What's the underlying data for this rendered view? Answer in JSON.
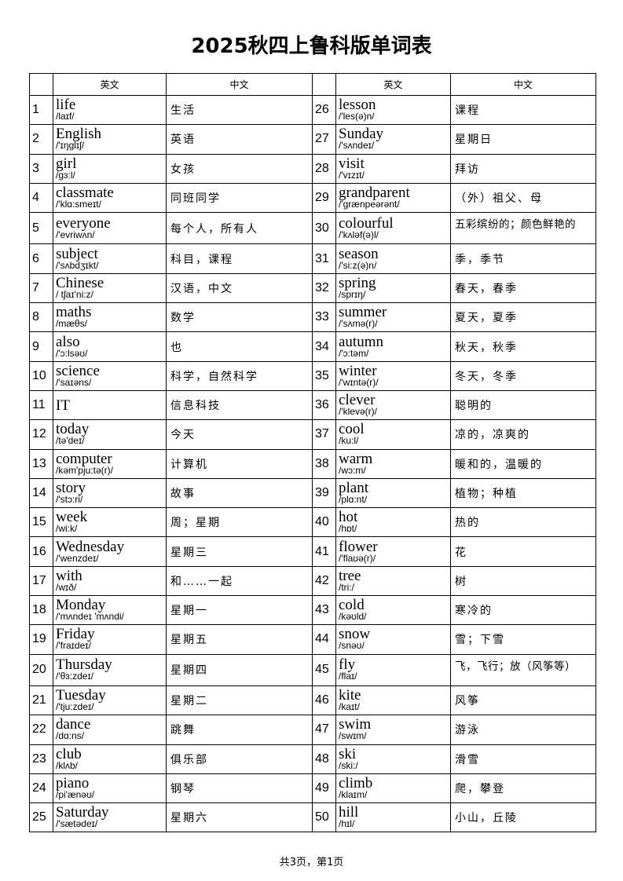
{
  "title": "2025秋四上鲁科版单词表",
  "headers": {
    "english": "英文",
    "chinese": "中文"
  },
  "words": [
    {
      "no": "1",
      "en": "life",
      "ph": "/laɪf/",
      "zh": "生活"
    },
    {
      "no": "2",
      "en": "English",
      "ph": "/'ɪŋglɪʃ/",
      "zh": "英语"
    },
    {
      "no": "3",
      "en": "girl",
      "ph": "/gɜ:l/",
      "zh": "女孩"
    },
    {
      "no": "4",
      "en": "classmate",
      "ph": "/'klɑ:smeɪt/",
      "zh": "同班同学"
    },
    {
      "no": "5",
      "en": "everyone",
      "ph": "/'evriwʌn/",
      "zh": "每个人，所有人"
    },
    {
      "no": "6",
      "en": "subject",
      "ph": "/'sʌbdʒɪkt/",
      "zh": "科目，课程"
    },
    {
      "no": "7",
      "en": "Chinese",
      "ph": "/ tʃaɪ'ni:z/",
      "zh": "汉语，中文"
    },
    {
      "no": "8",
      "en": "maths",
      "ph": "/mæθs/",
      "zh": "数学"
    },
    {
      "no": "9",
      "en": "also",
      "ph": "/'ɔ:lsəʊ/",
      "zh": "也"
    },
    {
      "no": "10",
      "en": "science",
      "ph": "/'saɪəns/",
      "zh": "科学，自然科学"
    },
    {
      "no": "11",
      "en": "IT",
      "ph": "",
      "zh": "信息科技"
    },
    {
      "no": "12",
      "en": "today",
      "ph": "/tə'deɪ/",
      "zh": "今天"
    },
    {
      "no": "13",
      "en": "computer",
      "ph": "/kəm'pju:tə(r)/",
      "zh": "计算机"
    },
    {
      "no": "14",
      "en": "story",
      "ph": "/'stɔ:ri/",
      "zh": "故事"
    },
    {
      "no": "15",
      "en": "week",
      "ph": "/wi:k/",
      "zh": "周；星期"
    },
    {
      "no": "16",
      "en": "Wednesday",
      "ph": "/'wenzdeɪ/",
      "zh": "星期三"
    },
    {
      "no": "17",
      "en": "with",
      "ph": "/wɪð/",
      "zh": "和……一起"
    },
    {
      "no": "18",
      "en": "Monday",
      "ph": "/'mʌndeɪ 'mʌndi/",
      "zh": "星期一"
    },
    {
      "no": "19",
      "en": "Friday",
      "ph": "/'fraɪdeɪ/",
      "zh": "星期五"
    },
    {
      "no": "20",
      "en": "Thursday",
      "ph": "/'θɜ:zdeɪ/",
      "zh": "星期四"
    },
    {
      "no": "21",
      "en": "Tuesday",
      "ph": "/'tju:zdeɪ/",
      "zh": "星期二"
    },
    {
      "no": "22",
      "en": "dance",
      "ph": "/dɑ:ns/",
      "zh": "跳舞"
    },
    {
      "no": "23",
      "en": "club",
      "ph": "/klʌb/",
      "zh": "俱乐部"
    },
    {
      "no": "24",
      "en": "piano",
      "ph": "/pi'ænəʊ/",
      "zh": "钢琴"
    },
    {
      "no": "25",
      "en": "Saturday",
      "ph": "/'sætədeɪ/",
      "zh": "星期六"
    },
    {
      "no": "26",
      "en": "lesson",
      "ph": "/'les(ə)n/",
      "zh": "课程"
    },
    {
      "no": "27",
      "en": "Sunday",
      "ph": "/'sʌndeɪ/",
      "zh": "星期日"
    },
    {
      "no": "28",
      "en": "visit",
      "ph": "/'vɪzɪt/",
      "zh": "拜访"
    },
    {
      "no": "29",
      "en": "grandparent",
      "ph": "/'grænpeərənt/",
      "zh": "（外）祖父、母"
    },
    {
      "no": "30",
      "en": "colourful",
      "ph": "/'kʌləf(ə)l/",
      "zh": "五彩缤纷的；颜色鲜艳的",
      "top": true
    },
    {
      "no": "31",
      "en": "season",
      "ph": "/'si:z(ə)n/",
      "zh": "季，季节"
    },
    {
      "no": "32",
      "en": "spring",
      "ph": "/sprɪŋ/",
      "zh": "春天，春季"
    },
    {
      "no": "33",
      "en": "summer",
      "ph": "/'sʌmə(r)/",
      "zh": "夏天，夏季"
    },
    {
      "no": "34",
      "en": "autumn",
      "ph": "/'ɔ:təm/",
      "zh": "秋天，秋季"
    },
    {
      "no": "35",
      "en": "winter",
      "ph": "/'wɪntə(r)/",
      "zh": "冬天，冬季"
    },
    {
      "no": "36",
      "en": "clever",
      "ph": "/'klevə(r)/",
      "zh": "聪明的"
    },
    {
      "no": "37",
      "en": "cool",
      "ph": "/ku:l/",
      "zh": "凉的，凉爽的"
    },
    {
      "no": "38",
      "en": "warm",
      "ph": "/wɔ:m/",
      "zh": "暖和的，温暖的"
    },
    {
      "no": "39",
      "en": "plant",
      "ph": "/plɑ:nt/",
      "zh": "植物；种植"
    },
    {
      "no": "40",
      "en": "hot",
      "ph": "/hɒt/",
      "zh": "热的"
    },
    {
      "no": "41",
      "en": "flower",
      "ph": "/'flaʊə(r)/",
      "zh": "花"
    },
    {
      "no": "42",
      "en": "tree",
      "ph": "/tri:/",
      "zh": "树"
    },
    {
      "no": "43",
      "en": "cold",
      "ph": "/kəʊld/",
      "zh": "寒冷的"
    },
    {
      "no": "44",
      "en": "snow",
      "ph": "/snəʊ/",
      "zh": "雪；下雪"
    },
    {
      "no": "45",
      "en": "fly",
      "ph": "/flaɪ/",
      "zh": "飞，飞行；放（风筝等）",
      "top": true
    },
    {
      "no": "46",
      "en": "kite",
      "ph": "/kaɪt/",
      "zh": "风筝"
    },
    {
      "no": "47",
      "en": "swim",
      "ph": "/swɪm/",
      "zh": "游泳"
    },
    {
      "no": "48",
      "en": "ski",
      "ph": "/ski:/",
      "zh": "滑雪"
    },
    {
      "no": "49",
      "en": "climb",
      "ph": "/klaɪm/",
      "zh": "爬，攀登"
    },
    {
      "no": "50",
      "en": "hill",
      "ph": "/hɪl/",
      "zh": "小山，丘陵"
    }
  ],
  "footer": "共3页，第1页"
}
